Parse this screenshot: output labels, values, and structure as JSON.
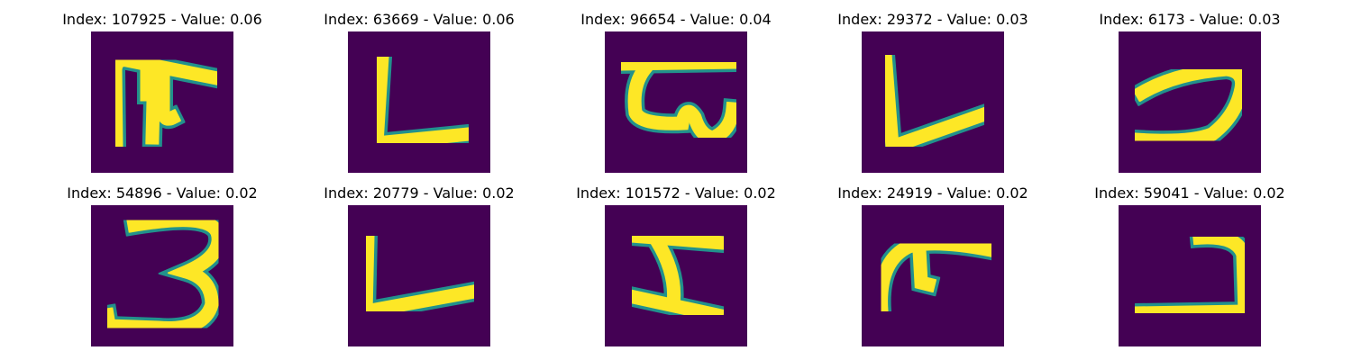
{
  "colors": {
    "background": "#440154",
    "edge": "#21918c",
    "stroke": "#fde725",
    "page": "#ffffff"
  },
  "panels": [
    {
      "title": "Index: 107925 - Value: 0.06",
      "glyph": "hook-t"
    },
    {
      "title": "Index: 63669 - Value: 0.06",
      "glyph": "L-shape"
    },
    {
      "title": "Index: 96654 - Value: 0.04",
      "glyph": "loop-bar"
    },
    {
      "title": "Index: 29372 - Value: 0.03",
      "glyph": "L-slanted"
    },
    {
      "title": "Index: 6173 - Value: 0.03",
      "glyph": "curl-right"
    },
    {
      "title": "Index: 54896 - Value: 0.02",
      "glyph": "three"
    },
    {
      "title": "Index: 20779 - Value: 0.02",
      "glyph": "L-shape"
    },
    {
      "title": "Index: 101572 - Value: 0.02",
      "glyph": "I-beam"
    },
    {
      "title": "Index: 24919 - Value: 0.02",
      "glyph": "arch-t"
    },
    {
      "title": "Index: 59041 - Value: 0.02",
      "glyph": "curl-right"
    }
  ]
}
